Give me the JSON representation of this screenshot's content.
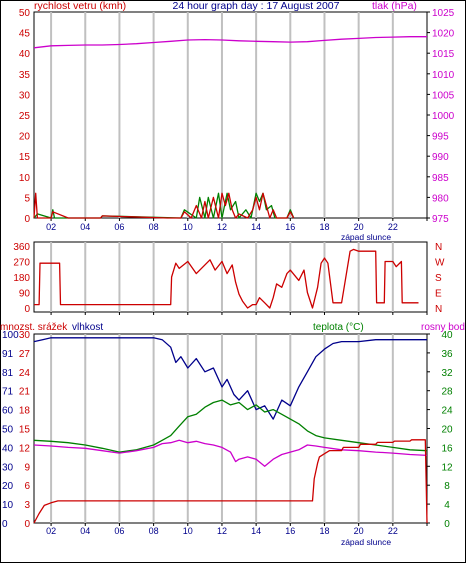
{
  "title": "24 hour graph day : 17 August 2007",
  "x_ticks": [
    "02",
    "04",
    "06",
    "08",
    "10",
    "12",
    "14",
    "16",
    "18",
    "20",
    "22"
  ],
  "sunset_label": "západ slunce",
  "colors": {
    "wind": "#cc0000",
    "wind_gust": "#008000",
    "pressure": "#cc00cc",
    "direction": "#cc0000",
    "rain": "#cc0000",
    "humidity": "#00008b",
    "temperature": "#008000",
    "dewpoint": "#cc00cc",
    "grid": "#c0c0c0"
  },
  "chart_data": [
    {
      "type": "line",
      "ylabel_left": "rychlost vetru (kmh)",
      "ylabel_right": "tlak (hPa)",
      "left_ticks": [
        "0",
        "5",
        "10",
        "15",
        "20",
        "25",
        "30",
        "35",
        "40",
        "45",
        "50"
      ],
      "right_ticks": [
        "975",
        "980",
        "985",
        "990",
        "995",
        "1000",
        "1005",
        "1010",
        "1015",
        "1020",
        "1025"
      ],
      "ylim_left": [
        0,
        50
      ],
      "ylim_right": [
        975,
        1025
      ],
      "xlim": [
        1,
        24
      ],
      "series": [
        {
          "name": "tlak (hPa)",
          "axis": "right",
          "x": [
            1,
            2,
            3,
            4,
            5,
            6,
            7,
            8,
            9,
            10,
            11,
            12,
            13,
            14,
            15,
            16,
            17,
            18,
            19,
            20,
            21,
            22,
            23,
            24
          ],
          "values": [
            1016.3,
            1016.8,
            1016.9,
            1017.0,
            1017.0,
            1017.1,
            1017.3,
            1017.6,
            1017.9,
            1018.2,
            1018.3,
            1018.2,
            1018.0,
            1017.9,
            1017.8,
            1017.7,
            1017.8,
            1018.1,
            1018.4,
            1018.6,
            1018.8,
            1018.9,
            1019.0,
            1019.0
          ]
        },
        {
          "name": "wind",
          "axis": "left",
          "x": [
            1,
            1.1,
            1.2,
            2.0,
            2.1,
            3.0,
            4.9,
            5.0,
            8.8,
            9.0,
            9.6,
            9.8,
            10.2,
            10.5,
            10.8,
            11.0,
            11.2,
            11.5,
            11.8,
            12.0,
            12.2,
            12.4,
            12.6,
            12.8,
            13.0,
            13.5,
            13.8,
            14.0,
            14.2,
            14.4,
            14.6,
            14.8,
            15.0,
            15.2,
            15.8,
            16.0,
            16.2
          ],
          "values": [
            0,
            6,
            0,
            0,
            1.5,
            0,
            0,
            0.5,
            0,
            0,
            0,
            1.5,
            0,
            3,
            0,
            4,
            0,
            5,
            0,
            6,
            3,
            6,
            2,
            0,
            1,
            0,
            2,
            5,
            2,
            6,
            3,
            0,
            2,
            0,
            0,
            1.5,
            0
          ]
        },
        {
          "name": "gust",
          "axis": "left",
          "x": [
            1,
            1.2,
            2.0,
            2.1,
            2.2,
            3.0,
            4.9,
            5.0,
            9.6,
            9.8,
            10.5,
            10.7,
            11.0,
            11.2,
            11.5,
            11.8,
            12.0,
            12.3,
            12.5,
            12.8,
            13.0,
            13.4,
            13.7,
            14.0,
            14.2,
            14.4,
            14.6,
            14.9,
            15.1,
            15.8,
            16.0,
            16.2
          ],
          "values": [
            0,
            1,
            0,
            2,
            0,
            0,
            0,
            0.5,
            0,
            2,
            0,
            5,
            0,
            5,
            0,
            6,
            0,
            6,
            2,
            4,
            0,
            2,
            0,
            6,
            4,
            6,
            2,
            3,
            0,
            0,
            2,
            0
          ]
        }
      ]
    },
    {
      "type": "line",
      "ylabel_right_letters": [
        "N",
        "W",
        "S",
        "E",
        "N"
      ],
      "left_ticks": [
        "0",
        "90",
        "180",
        "270",
        "360"
      ],
      "ylim": [
        0,
        360
      ],
      "xlim": [
        1,
        24
      ],
      "series": [
        {
          "name": "direction",
          "x": [
            1,
            1.3,
            1.35,
            2.5,
            2.55,
            3.0,
            9.0,
            9.05,
            9.3,
            9.5,
            10.0,
            10.5,
            11.0,
            11.3,
            11.6,
            12.0,
            12.3,
            12.6,
            12.8,
            13.0,
            13.2,
            13.5,
            13.8,
            14.0,
            14.2,
            14.5,
            14.8,
            15.0,
            15.2,
            15.5,
            15.8,
            16.0,
            16.5,
            16.8,
            17.0,
            17.3,
            17.6,
            17.8,
            18.0,
            18.2,
            18.5,
            19.0,
            19.5,
            19.7,
            20.0,
            20.5,
            21.0,
            21.05,
            21.5,
            21.55,
            22.0,
            22.2,
            22.5,
            22.55,
            23.5
          ],
          "values": [
            20,
            20,
            260,
            260,
            20,
            20,
            20,
            180,
            260,
            230,
            270,
            200,
            250,
            280,
            220,
            270,
            200,
            250,
            150,
            80,
            40,
            0,
            20,
            20,
            60,
            30,
            0,
            60,
            140,
            120,
            200,
            220,
            160,
            220,
            90,
            0,
            120,
            260,
            290,
            260,
            30,
            30,
            330,
            340,
            330,
            330,
            330,
            30,
            30,
            270,
            270,
            240,
            270,
            30,
            30
          ]
        }
      ]
    },
    {
      "type": "line",
      "ylabel_left_rain": "mnozst. srážek",
      "ylabel_left_humidity": "vlhkost",
      "ylabel_temperature": "teplota (°C)",
      "ylabel_dewpoint": "rosny bod",
      "humidity_ticks": [
        "0",
        "10",
        "20",
        "30",
        "40",
        "50",
        "60",
        "71",
        "81",
        "91",
        "100"
      ],
      "rain_ticks": [
        "0",
        "3",
        "6",
        "9",
        "12",
        "15",
        "18",
        "21",
        "24",
        "27",
        "30"
      ],
      "temp_ticks": [
        "0",
        "4",
        "8",
        "12",
        "16",
        "20",
        "24",
        "28",
        "32",
        "36",
        "40"
      ],
      "xlim": [
        1,
        24
      ],
      "series": [
        {
          "name": "vlhkost",
          "x": [
            1,
            1.5,
            2,
            3,
            4,
            5,
            6,
            7,
            8,
            8.5,
            9,
            9.3,
            9.6,
            10,
            10.5,
            11,
            11.5,
            12,
            12.3,
            12.7,
            13,
            13.5,
            14,
            14.5,
            15,
            15.5,
            16,
            16.5,
            17,
            17.5,
            18,
            18.5,
            19,
            20,
            21,
            22,
            23,
            24
          ],
          "values": [
            96,
            97,
            98,
            98,
            98,
            98,
            98,
            98,
            98,
            97,
            93,
            85,
            88,
            82,
            87,
            80,
            82,
            72,
            76,
            68,
            65,
            70,
            60,
            62,
            55,
            65,
            62,
            72,
            80,
            88,
            92,
            95,
            96,
            96,
            97,
            97,
            97,
            97
          ]
        },
        {
          "name": "teplota (°C)",
          "x": [
            1,
            2,
            3,
            4,
            5,
            6,
            7,
            8,
            8.5,
            9,
            9.5,
            10,
            10.5,
            11,
            11.5,
            12,
            12.5,
            13,
            13.5,
            14,
            14.5,
            15,
            15.5,
            16,
            16.5,
            17,
            17.5,
            18,
            19,
            20,
            21,
            22,
            23,
            24
          ],
          "values": [
            17.5,
            17.3,
            17.0,
            16.5,
            15.8,
            15.0,
            15.5,
            16.5,
            17.5,
            18.5,
            20.5,
            22.5,
            23.0,
            24.5,
            25.5,
            26.0,
            25.0,
            25.5,
            24.0,
            25.0,
            23.5,
            24.0,
            23.0,
            22.0,
            21.0,
            19.5,
            18.5,
            18.0,
            17.5,
            17.0,
            16.5,
            16.0,
            15.5,
            15.3
          ]
        },
        {
          "name": "rosny bod",
          "x": [
            1,
            2,
            3,
            4,
            5,
            6,
            7,
            8,
            8.5,
            9,
            9.5,
            10,
            10.5,
            11,
            11.5,
            12,
            12.5,
            12.8,
            13,
            13.5,
            14,
            14.5,
            15,
            15.5,
            16,
            16.5,
            17,
            17.5,
            18,
            19,
            20,
            21,
            22,
            23,
            24
          ],
          "values": [
            16.5,
            16.3,
            16.0,
            15.8,
            15.3,
            14.8,
            15.3,
            16.0,
            16.8,
            17.0,
            17.5,
            17.0,
            17.3,
            16.8,
            16.5,
            16.0,
            15.0,
            13.0,
            13.5,
            14.0,
            13.5,
            12.0,
            13.5,
            14.5,
            15.0,
            15.5,
            16.5,
            16.3,
            16.0,
            15.5,
            15.3,
            15.0,
            14.8,
            14.5,
            14.3
          ]
        },
        {
          "name": "mnozst. srážek",
          "x": [
            1,
            1.3,
            1.6,
            2.0,
            2.4,
            17.3,
            17.4,
            17.6,
            17.7,
            18.0,
            18.3,
            19.0,
            19.1,
            20.0,
            20.1,
            21.0,
            21.1,
            22.0,
            22.1,
            23.0,
            23.1,
            23.9,
            24.0
          ],
          "values": [
            0,
            1.5,
            2.8,
            3.2,
            3.5,
            3.5,
            7.0,
            9.5,
            10.5,
            11.0,
            11.5,
            11.5,
            12.0,
            12.0,
            12.5,
            12.5,
            12.8,
            12.8,
            13.0,
            13.0,
            13.2,
            13.2,
            0
          ]
        }
      ]
    }
  ]
}
